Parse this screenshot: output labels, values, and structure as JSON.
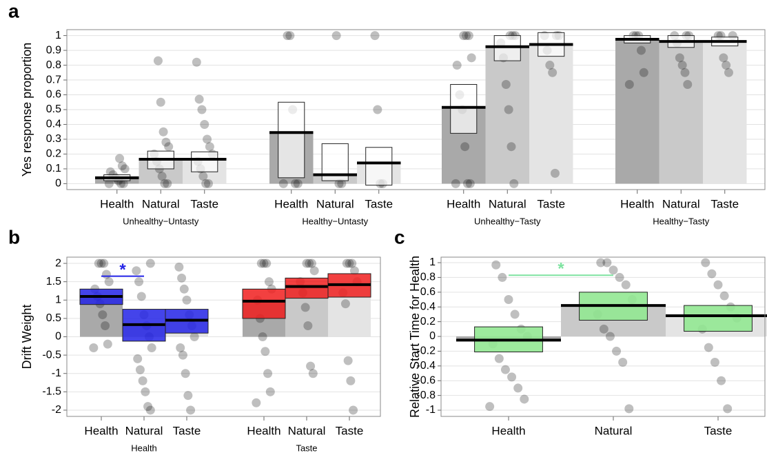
{
  "chart_data": [
    {
      "type": "bar",
      "panel": "a",
      "ylabel": "Yes response proportion",
      "ylim": [
        -0.04,
        1.04
      ],
      "yticks": [
        0,
        0.1,
        0.2,
        0.3,
        0.4,
        0.5,
        0.6,
        0.7,
        0.8,
        0.9,
        1
      ],
      "grid": true,
      "bar_colors": [
        "#a9a9a9",
        "#c9c9c9",
        "#e4e4e4"
      ],
      "box_color": "#ffffff",
      "box_opacity": 0.7,
      "groups": [
        {
          "name": "Unhealthy−Untasty",
          "categories": [
            "Health",
            "Natural",
            "Taste"
          ],
          "values": [
            0.04,
            0.165,
            0.165
          ],
          "ci_low": [
            0.02,
            0.1,
            0.08
          ],
          "ci_high": [
            0.06,
            0.22,
            0.215
          ],
          "points": [
            [
              0,
              0,
              0,
              0.02,
              0.04,
              0.06,
              0.08,
              0.1,
              0.12,
              0.17
            ],
            [
              0,
              0,
              0.05,
              0.1,
              0.15,
              0.2,
              0.25,
              0.28,
              0.35,
              0.55,
              0.83
            ],
            [
              0,
              0,
              0.05,
              0.1,
              0.15,
              0.2,
              0.25,
              0.3,
              0.4,
              0.5,
              0.57,
              0.82
            ]
          ]
        },
        {
          "name": "Healthy−Untasty",
          "categories": [
            "Health",
            "Natural",
            "Taste"
          ],
          "values": [
            0.345,
            0.06,
            0.14
          ],
          "ci_low": [
            0.04,
            0.02,
            -0.01
          ],
          "ci_high": [
            0.55,
            0.27,
            0.245
          ],
          "points": [
            [
              0,
              0,
              0,
              0.5,
              1,
              1
            ],
            [
              0,
              0,
              1
            ],
            [
              0,
              0,
              0.5,
              1
            ]
          ]
        },
        {
          "name": "Unhealthy−Tasty",
          "categories": [
            "Health",
            "Natural",
            "Taste"
          ],
          "values": [
            0.515,
            0.925,
            0.94
          ],
          "ci_low": [
            0.34,
            0.83,
            0.86
          ],
          "ci_high": [
            0.67,
            1,
            1.02
          ],
          "points": [
            [
              0,
              0,
              0,
              0.25,
              0.5,
              0.6,
              0.8,
              0.85,
              1,
              1,
              1
            ],
            [
              0,
              0.25,
              0.5,
              0.67,
              0.85,
              0.95,
              1,
              1,
              1
            ],
            [
              0.07,
              0.75,
              0.8,
              0.9,
              1,
              1,
              1
            ]
          ]
        },
        {
          "name": "Healthy−Tasty",
          "categories": [
            "Health",
            "Natural",
            "Taste"
          ],
          "values": [
            0.975,
            0.96,
            0.96
          ],
          "ci_low": [
            0.95,
            0.92,
            0.93
          ],
          "ci_high": [
            1,
            1,
            0.99
          ],
          "points": [
            [
              0.67,
              0.75,
              0.9,
              1,
              1,
              1
            ],
            [
              0.67,
              0.75,
              0.8,
              0.85,
              0.95,
              1,
              1,
              1
            ],
            [
              0.75,
              0.8,
              0.85,
              1,
              1,
              1
            ]
          ]
        }
      ]
    },
    {
      "type": "bar",
      "panel": "b",
      "ylabel": "Drift Weight",
      "ylim": [
        -2.17,
        2.17
      ],
      "yticks": [
        -2,
        -1.5,
        -1,
        -0.5,
        0,
        0.5,
        1,
        1.5,
        2
      ],
      "grid": true,
      "bar_colors": [
        "#a9a9a9",
        "#c9c9c9",
        "#e4e4e4"
      ],
      "box_opacity": 0.85,
      "groups": [
        {
          "name": "Health",
          "box_color": "#2323e6",
          "categories": [
            "Health",
            "Natural",
            "Taste"
          ],
          "values": [
            1.1,
            0.33,
            0.45
          ],
          "ci_low": [
            0.88,
            -0.12,
            0.1
          ],
          "ci_high": [
            1.3,
            0.75,
            0.75
          ],
          "points": [
            [
              -0.3,
              -0.2,
              0.3,
              0.6,
              0.9,
              1.1,
              1.3,
              1.5,
              1.7,
              2,
              2,
              2
            ],
            [
              -2,
              -1.9,
              -1.5,
              -1.2,
              -0.9,
              -0.6,
              -0.3,
              0,
              0.3,
              0.6,
              1.1,
              1.5,
              1.8,
              2
            ],
            [
              -2,
              -1.6,
              -1,
              -0.5,
              -0.3,
              0,
              0.3,
              0.6,
              1,
              1.3,
              1.6,
              1.9
            ]
          ]
        },
        {
          "name": "Taste",
          "box_color": "#f01e1e",
          "categories": [
            "Health",
            "Natural",
            "Taste"
          ],
          "values": [
            0.97,
            1.37,
            1.42
          ],
          "ci_low": [
            0.5,
            1.05,
            1.08
          ],
          "ci_high": [
            1.3,
            1.6,
            1.72
          ],
          "points": [
            [
              -1.8,
              -1.5,
              -1,
              -0.4,
              0,
              0.5,
              1,
              1.3,
              1.5,
              2,
              2,
              2
            ],
            [
              -1,
              -0.8,
              0.3,
              0.8,
              1.2,
              1.5,
              1.8,
              2,
              2,
              2
            ],
            [
              -2,
              -1.2,
              -0.65,
              0.9,
              1.2,
              1.5,
              1.8,
              2,
              2,
              2
            ]
          ]
        }
      ],
      "significance": {
        "group": 0,
        "from": 0,
        "to": 1,
        "y": 1.65,
        "label": "*",
        "color": "#2323e6"
      }
    },
    {
      "type": "bar",
      "panel": "c",
      "ylabel": "Relative Start Time for Health",
      "ylim": [
        -1.084,
        1.075
      ],
      "yticks": [
        -1,
        -0.8,
        -0.6,
        -0.4,
        -0.2,
        0,
        0.2,
        0.4,
        0.6,
        0.8,
        1
      ],
      "grid": true,
      "bar_colors": [
        "#a9a9a9",
        "#c9c9c9",
        "#e4e4e4"
      ],
      "box_opacity": 0.9,
      "groups": [
        {
          "box_color": "#92e892",
          "categories": [
            "Health",
            "Natural",
            "Taste"
          ],
          "values": [
            -0.05,
            0.42,
            0.28
          ],
          "ci_low": [
            -0.21,
            0.22,
            0.07
          ],
          "ci_high": [
            0.13,
            0.6,
            0.42
          ],
          "points": [
            [
              -0.95,
              -0.85,
              -0.7,
              -0.55,
              -0.45,
              -0.3,
              -0.1,
              0,
              0.1,
              0.3,
              0.5,
              0.8,
              0.97
            ],
            [
              -0.98,
              -0.35,
              -0.2,
              0,
              0.1,
              0.3,
              0.5,
              0.7,
              0.8,
              0.9,
              1,
              1
            ],
            [
              -0.98,
              -0.6,
              -0.35,
              -0.15,
              0.1,
              0.25,
              0.4,
              0.55,
              0.7,
              0.85,
              1
            ]
          ]
        }
      ],
      "significance": {
        "group": 0,
        "from": 0,
        "to": 1,
        "y": 0.83,
        "label": "*",
        "color": "#7ee3a0"
      }
    }
  ]
}
